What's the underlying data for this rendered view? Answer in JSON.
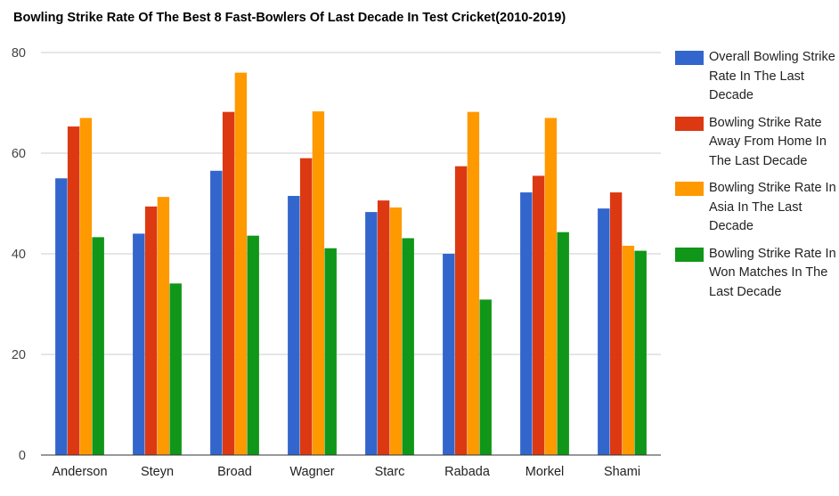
{
  "chart_data": {
    "type": "bar",
    "title": "Bowling Strike Rate Of The Best 8 Fast-Bowlers Of Last Decade In Test Cricket(2010-2019)",
    "xlabel": "",
    "ylabel": "",
    "ylim": [
      0,
      80
    ],
    "yticks": [
      "0",
      "20",
      "40",
      "60",
      "80"
    ],
    "grid": true,
    "legend_position": "right",
    "categories": [
      "Anderson",
      "Steyn",
      "Broad",
      "Wagner",
      "Starc",
      "Rabada",
      "Morkel",
      "Shami"
    ],
    "series": [
      {
        "name": "Overall Bowling Strike Rate In The Last Decade",
        "color": "#3366cc",
        "values": [
          55.0,
          44.0,
          56.5,
          51.5,
          48.3,
          40.0,
          52.2,
          49.0
        ]
      },
      {
        "name": "Bowling Strike Rate Away From Home In The Last Decade",
        "color": "#dc3912",
        "values": [
          65.3,
          49.4,
          68.2,
          59.0,
          50.6,
          57.4,
          55.5,
          52.2
        ]
      },
      {
        "name": "Bowling Strike Rate In Asia In The Last Decade",
        "color": "#ff9900",
        "values": [
          67.0,
          51.3,
          76.0,
          68.3,
          49.2,
          68.2,
          67.0,
          41.6
        ]
      },
      {
        "name": "Bowling Strike Rate In Won Matches In The Last Decade",
        "color": "#109618",
        "values": [
          43.3,
          34.1,
          43.6,
          41.1,
          43.1,
          30.9,
          44.3,
          40.6
        ]
      }
    ]
  }
}
